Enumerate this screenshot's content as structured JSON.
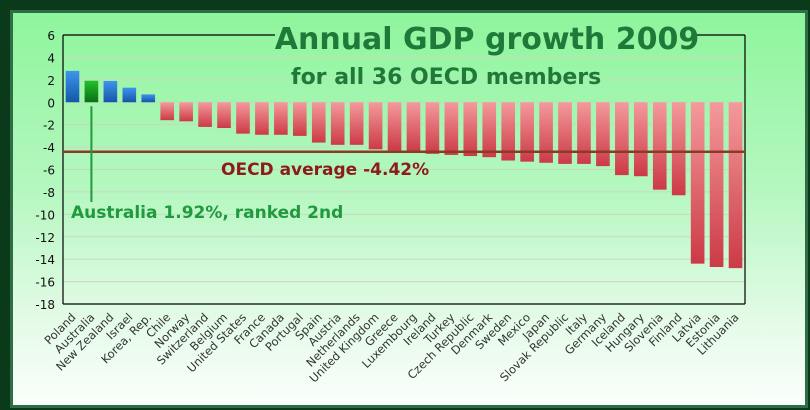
{
  "chart_data": {
    "type": "bar",
    "title": "Annual GDP growth 2009",
    "subtitle": "for all 36 OECD members",
    "xlabel": "",
    "ylabel": "",
    "ylim": [
      -18,
      6
    ],
    "yticks": [
      6,
      4,
      2,
      0,
      -2,
      -4,
      -6,
      -8,
      -10,
      -12,
      -14,
      -16,
      -18
    ],
    "grid": true,
    "categories": [
      "Poland",
      "Australia",
      "New Zealand",
      "Israel",
      "Korea, Rep.",
      "Chile",
      "Norway",
      "Switzerland",
      "Belgium",
      "United States",
      "France",
      "Canada",
      "Portugal",
      "Spain",
      "Austria",
      "Netherlands",
      "United Kingdom",
      "Greece",
      "Luxembourg",
      "Ireland",
      "Turkey",
      "Czech Republic",
      "Denmark",
      "Sweden",
      "Mexico",
      "Japan",
      "Slovak Republic",
      "Italy",
      "Germany",
      "Iceland",
      "Hungary",
      "Slovenia",
      "Finland",
      "Latvia",
      "Estonia",
      "Lithuania"
    ],
    "values": [
      2.8,
      1.92,
      1.9,
      1.3,
      0.7,
      -1.6,
      -1.7,
      -2.2,
      -2.3,
      -2.8,
      -2.9,
      -2.9,
      -3.0,
      -3.6,
      -3.8,
      -3.8,
      -4.2,
      -4.3,
      -4.4,
      -4.6,
      -4.7,
      -4.8,
      -4.9,
      -5.2,
      -5.3,
      -5.4,
      -5.5,
      -5.5,
      -5.7,
      -6.5,
      -6.6,
      -7.8,
      -8.3,
      -14.4,
      -14.7,
      -14.8
    ],
    "highlight": "Australia",
    "reference_line": {
      "value": -4.42,
      "label": "OECD average -4.42%"
    },
    "annotation": "Australia 1.92%, ranked 2nd",
    "colors": {
      "positive": "#1f74d0",
      "highlight": "#12a020",
      "negative": "#d9434f",
      "average_line": "#8b3a2a",
      "average_text": "#8b1c1c",
      "annotation_text": "#1f9a3c",
      "title_text": "#1f7a3a"
    }
  }
}
